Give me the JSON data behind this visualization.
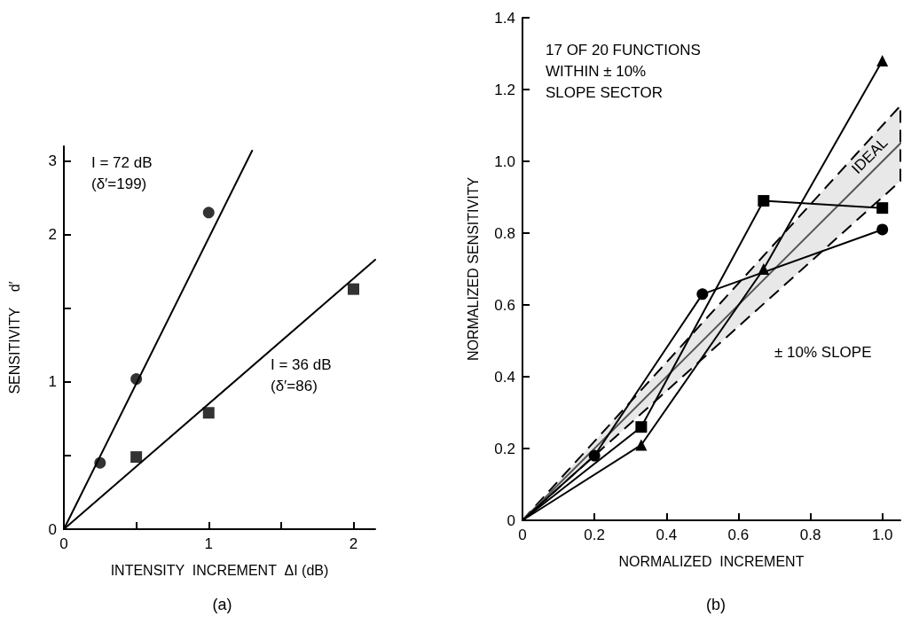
{
  "chart_data": [
    {
      "type": "scatter",
      "title": "(a)",
      "xlabel": "INTENSITY  INCREMENT  ΔI (dB)",
      "ylabel": "SENSITIVITY    d′",
      "xlim": [
        0,
        2.15
      ],
      "ylim": [
        0,
        2.6
      ],
      "xticks": [
        0,
        {
          "value": 0.5,
          "label": null
        },
        1,
        {
          "value": 1.5,
          "label": null
        },
        2
      ],
      "yticks": [
        0,
        {
          "value": 0.5,
          "label": null
        },
        1,
        {
          "value": 1.5,
          "label": null
        },
        2,
        {
          "value": 2.5,
          "label": "3"
        }
      ],
      "grid": false,
      "series": [
        {
          "type": "line",
          "marker": "none",
          "color": "#000000",
          "x": [
            0,
            1.3
          ],
          "values": [
            0,
            2.57
          ]
        },
        {
          "marker": "circle",
          "color": "#000000",
          "x": [
            0.25,
            0.5,
            1
          ],
          "values": [
            0.45,
            1.02,
            2.15
          ]
        },
        {
          "type": "line",
          "marker": "none",
          "color": "#000000",
          "x": [
            0,
            2.15
          ],
          "values": [
            0,
            1.83
          ]
        },
        {
          "marker": "square",
          "color": "#000000",
          "x": [
            0.5,
            1,
            2
          ],
          "values": [
            0.49,
            0.79,
            1.63
          ]
        }
      ],
      "annotations": [
        "I = 72 dB\n(δ′=199)",
        "I = 36 dB\n(δ′=86)"
      ]
    },
    {
      "type": "line",
      "title": "(b)",
      "xlabel": "NORMALIZED  INCREMENT",
      "ylabel": "NORMALIZED SENSITIVITY",
      "xlim": [
        0,
        1.05
      ],
      "ylim": [
        0,
        1.4
      ],
      "xticks": [
        0,
        0.2,
        0.4,
        0.6,
        0.8,
        {
          "value": 1,
          "label": "1.0"
        }
      ],
      "yticks": [
        0,
        0.2,
        0.4,
        0.6,
        0.8,
        {
          "value": 1,
          "label": "1.0"
        },
        1.2,
        1.4
      ],
      "grid": false,
      "series": [
        {
          "marker": "none",
          "color": "#555555",
          "x": [
            0,
            1.05
          ],
          "values": [
            0,
            1.05
          ],
          "lower": [
            0,
            0.945
          ],
          "upper": [
            0,
            1.155
          ]
        },
        {
          "marker": "triangle",
          "color": "#000000",
          "x": [
            0,
            0.33,
            0.67,
            1
          ],
          "values": [
            0,
            0.21,
            0.7,
            1.28
          ]
        },
        {
          "marker": "square",
          "color": "#000000",
          "x": [
            0,
            0.33,
            0.67,
            1
          ],
          "values": [
            0,
            0.26,
            0.89,
            0.87
          ]
        },
        {
          "marker": "circle",
          "color": "#000000",
          "x": [
            0,
            0.2,
            0.5,
            1
          ],
          "values": [
            0,
            0.18,
            0.63,
            0.81
          ]
        }
      ],
      "annotations": [
        "17 OF 20 FUNCTIONS\nWITHIN ± 10%\nSLOPE SECTOR",
        "IDEAL",
        "± 10% SLOPE"
      ]
    }
  ]
}
